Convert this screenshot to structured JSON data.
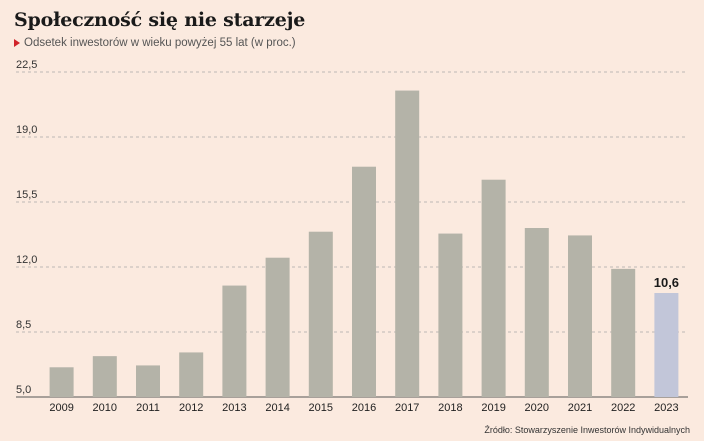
{
  "header": {
    "title": "Społeczność się nie starzeje",
    "subtitle": "Odsetek inwestorów w wieku powyżej 55 lat (w proc.)"
  },
  "footer": {
    "source": "Źródło: Stowarzyszenie Inwestorów Indywidualnych"
  },
  "colors": {
    "background": "#fbeadf",
    "bar": "#b4b3a8",
    "highlight_bar": "#c2c6d9",
    "grid": "#a8a8a8",
    "marker": "#d1232a"
  },
  "chart_data": {
    "type": "bar",
    "title": "Społeczność się nie starzeje",
    "subtitle": "Odsetek inwestorów w wieku powyżej 55 lat (w proc.)",
    "categories": [
      "2009",
      "2010",
      "2011",
      "2012",
      "2013",
      "2014",
      "2015",
      "2016",
      "2017",
      "2018",
      "2019",
      "2020",
      "2021",
      "2022",
      "2023"
    ],
    "values": [
      6.6,
      7.2,
      6.7,
      7.4,
      11.0,
      12.5,
      13.9,
      17.4,
      21.5,
      13.8,
      16.7,
      14.1,
      13.7,
      11.9,
      10.6
    ],
    "ylim": [
      5.0,
      22.5
    ],
    "yticks": [
      5.0,
      8.5,
      12.0,
      15.5,
      19.0,
      22.5
    ],
    "ytick_labels": [
      "5,0",
      "8,5",
      "12,0",
      "15,5",
      "19,0",
      "22,5"
    ],
    "highlight_index": 14,
    "highlight_label": "10,6",
    "grid": true
  }
}
